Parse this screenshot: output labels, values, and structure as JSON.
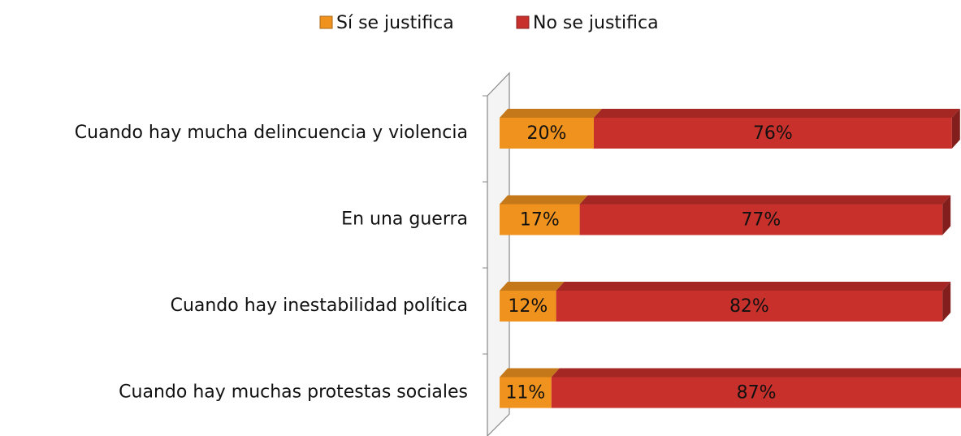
{
  "chart_data": {
    "type": "stacked-bar-horizontal",
    "categories": [
      "Cuando hay mucha delincuencia y violencia",
      "En una guerra",
      "Cuando hay inestabilidad política",
      "Cuando hay muchas protestas sociales"
    ],
    "series": [
      {
        "name": "Sí se justifica",
        "color": "#f0921e",
        "values": [
          20,
          17,
          12,
          11
        ],
        "value_labels": [
          "20%",
          "17%",
          "12%",
          "11%"
        ]
      },
      {
        "name": "No se justifica",
        "color": "#c8302c",
        "values": [
          76,
          77,
          82,
          87
        ],
        "value_labels": [
          "76%",
          "77%",
          "82%",
          "87%"
        ]
      }
    ],
    "legend": "top"
  }
}
